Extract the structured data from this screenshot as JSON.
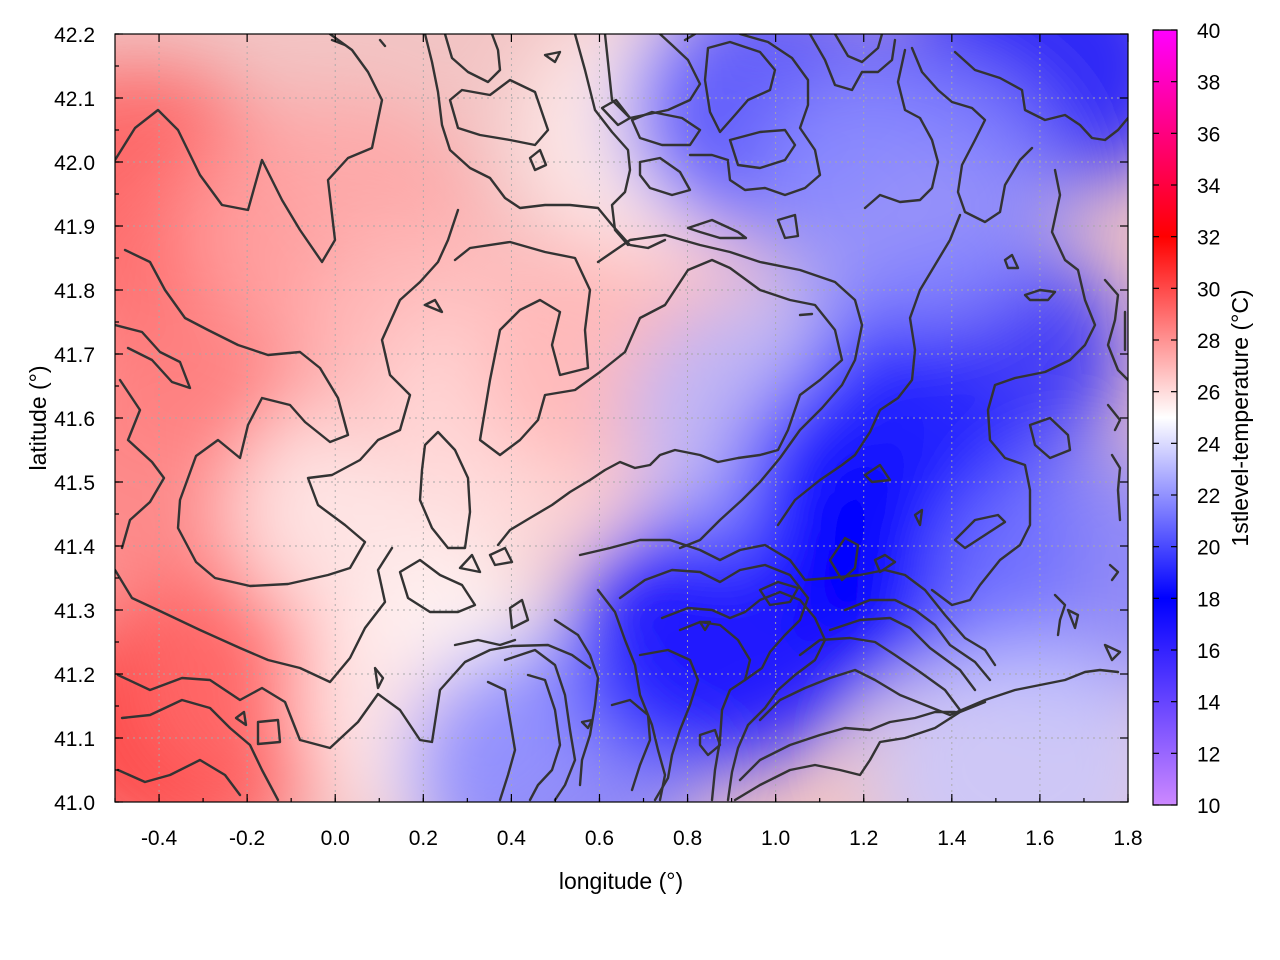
{
  "chart_data": {
    "type": "heatmap",
    "title": "",
    "xlabel": "longitude (°)",
    "ylabel": "latitude (°)",
    "colorbar_label": "1stlevel-temperature (°C)",
    "xlim": [
      -0.5,
      1.8
    ],
    "ylim": [
      41.0,
      42.2
    ],
    "clim": [
      10,
      40
    ],
    "x_ticks": [
      "-0.4",
      "-0.2",
      "0.0",
      "0.2",
      "0.4",
      "0.6",
      "0.8",
      "1.0",
      "1.2",
      "1.4",
      "1.6",
      "1.8"
    ],
    "x_tick_values": [
      -0.4,
      -0.2,
      0.0,
      0.2,
      0.4,
      0.6,
      0.8,
      1.0,
      1.2,
      1.4,
      1.6,
      1.8
    ],
    "y_ticks": [
      "41.0",
      "41.1",
      "41.2",
      "41.3",
      "41.4",
      "41.5",
      "41.6",
      "41.7",
      "41.8",
      "41.9",
      "42.0",
      "42.1",
      "42.2"
    ],
    "y_tick_values": [
      41.0,
      41.1,
      41.2,
      41.3,
      41.4,
      41.5,
      41.6,
      41.7,
      41.8,
      41.9,
      42.0,
      42.1,
      42.2
    ],
    "colorbar_ticks": [
      "10",
      "12",
      "14",
      "16",
      "18",
      "20",
      "22",
      "24",
      "26",
      "28",
      "30",
      "32",
      "34",
      "36",
      "38",
      "40"
    ],
    "colorbar_tick_values": [
      10,
      12,
      14,
      16,
      18,
      20,
      22,
      24,
      26,
      28,
      30,
      32,
      34,
      36,
      38,
      40
    ],
    "colormap_stops": [
      {
        "value": 10,
        "color": "#cc88ff"
      },
      {
        "value": 18,
        "color": "#0000ff"
      },
      {
        "value": 25,
        "color": "#ffffff"
      },
      {
        "value": 32,
        "color": "#ff0000"
      },
      {
        "value": 40,
        "color": "#ff00ff"
      }
    ],
    "grid": true,
    "contours": true,
    "temperature_field_samples": [
      {
        "lon": -0.45,
        "lat": 41.95,
        "t": 29.5
      },
      {
        "lon": -0.3,
        "lat": 41.75,
        "t": 28.8
      },
      {
        "lon": -0.4,
        "lat": 41.5,
        "t": 28.5
      },
      {
        "lon": -0.35,
        "lat": 41.12,
        "t": 30.5
      },
      {
        "lon": -0.1,
        "lat": 41.2,
        "t": 29.0
      },
      {
        "lon": 0.0,
        "lat": 41.9,
        "t": 27.5
      },
      {
        "lon": 0.1,
        "lat": 41.45,
        "t": 25.5
      },
      {
        "lon": 0.25,
        "lat": 41.7,
        "t": 26.8
      },
      {
        "lon": 0.25,
        "lat": 41.15,
        "t": 25.2
      },
      {
        "lon": 0.45,
        "lat": 41.6,
        "t": 26.0
      },
      {
        "lon": 0.5,
        "lat": 41.05,
        "t": 21.5
      },
      {
        "lon": 0.65,
        "lat": 41.7,
        "t": 27.0
      },
      {
        "lon": 0.75,
        "lat": 42.05,
        "t": 25.5
      },
      {
        "lon": 0.85,
        "lat": 41.25,
        "t": 19.0
      },
      {
        "lon": 0.95,
        "lat": 41.3,
        "t": 17.0
      },
      {
        "lon": 1.0,
        "lat": 42.08,
        "t": 20.0
      },
      {
        "lon": 1.0,
        "lat": 41.6,
        "t": 23.0
      },
      {
        "lon": 1.25,
        "lat": 41.5,
        "t": 18.5
      },
      {
        "lon": 1.35,
        "lat": 41.4,
        "t": 18.0
      },
      {
        "lon": 1.45,
        "lat": 41.7,
        "t": 19.0
      },
      {
        "lon": 1.6,
        "lat": 42.15,
        "t": 17.5
      },
      {
        "lon": 1.7,
        "lat": 41.35,
        "t": 21.5
      },
      {
        "lon": 1.55,
        "lat": 41.05,
        "t": 23.5
      },
      {
        "lon": 1.3,
        "lat": 41.95,
        "t": 22.0
      }
    ]
  }
}
